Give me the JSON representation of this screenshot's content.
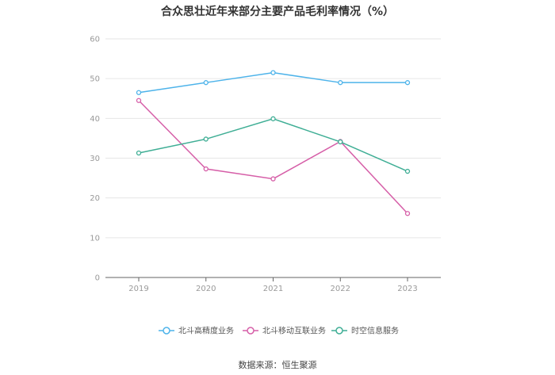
{
  "chart_data": {
    "type": "line",
    "title": "合众思壮近年来部分主要产品毛利率情况（%）",
    "x": [
      "2019",
      "2020",
      "2021",
      "2022",
      "2023"
    ],
    "ylim": [
      0,
      60
    ],
    "yticks": [
      0,
      10,
      20,
      30,
      40,
      50,
      60
    ],
    "grid": true,
    "legend_position": "bottom",
    "series": [
      {
        "name": "北斗高精度业务",
        "color": "#4db3ea",
        "values": [
          46.5,
          49.0,
          51.5,
          49.0,
          49.0
        ]
      },
      {
        "name": "北斗移动互联业务",
        "color": "#d65fa8",
        "values": [
          44.5,
          27.3,
          24.8,
          34.2,
          16.1
        ]
      },
      {
        "name": "时空信息服务",
        "color": "#3fae95",
        "values": [
          31.3,
          34.8,
          39.9,
          34.1,
          26.7
        ]
      }
    ]
  },
  "source": "数据来源：恒生聚源"
}
